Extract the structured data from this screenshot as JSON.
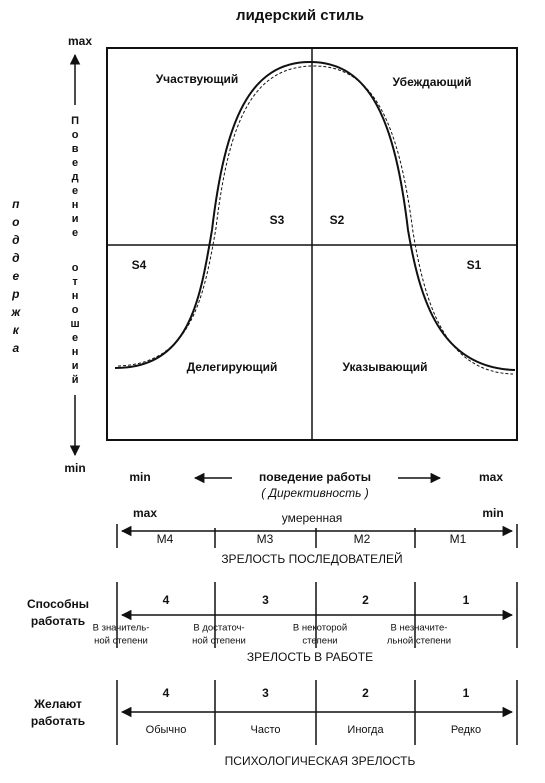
{
  "title": "лидерский стиль",
  "y_axis": {
    "max": "max",
    "label": [
      "Поведение",
      "отношений"
    ],
    "min": "min",
    "side_label": "поддержка"
  },
  "quadrants": [
    {
      "label": "Участвующий",
      "code": "S3"
    },
    {
      "label": "Убеждающий",
      "code": "S2"
    },
    {
      "label": "Делегирующий",
      "code": "S4"
    },
    {
      "label": "Указывающий",
      "code": "S1"
    }
  ],
  "x_axis": {
    "min": "min",
    "label": "поведение работы",
    "sub_label": "( Директивность )",
    "max": "max"
  },
  "follower_maturity": {
    "high": "max",
    "mid": "умеренная",
    "low": "min",
    "levels": [
      "M4",
      "M3",
      "M2",
      "M1"
    ],
    "caption": "ЗРЕЛОСТЬ ПОСЛЕДОВАТЕЛЕЙ"
  },
  "ability": {
    "label": [
      "Способны",
      "работать"
    ],
    "levels": [
      {
        "number": 4,
        "text": [
          "В значитель-",
          "ной степени"
        ]
      },
      {
        "number": 3,
        "text": [
          "В достаточ-",
          "ной степени"
        ]
      },
      {
        "number": 2,
        "text": [
          "В некоторой",
          "степени"
        ]
      },
      {
        "number": 1,
        "text": [
          "В незначите-",
          "льной степени"
        ]
      }
    ],
    "caption": "ЗРЕЛОСТЬ В РАБОТЕ"
  },
  "willingness": {
    "label": [
      "Желают",
      "работать"
    ],
    "levels": [
      {
        "number": 4,
        "text": "Обычно"
      },
      {
        "number": 3,
        "text": "Часто"
      },
      {
        "number": 2,
        "text": "Иногда"
      },
      {
        "number": 1,
        "text": "Редко"
      }
    ],
    "caption": "ПСИХОЛОГИЧЕСКАЯ ЗРЕЛОСТЬ"
  }
}
